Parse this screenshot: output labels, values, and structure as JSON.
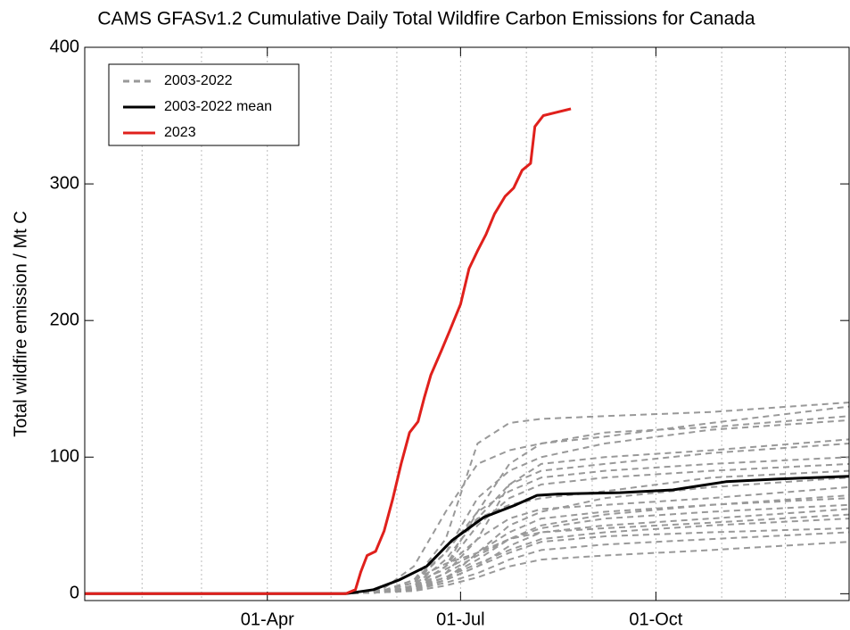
{
  "chart_data": {
    "type": "line",
    "title": "CAMS GFASv1.2 Cumulative Daily Total Wildfire Carbon Emissions for Canada",
    "ylabel": "Total wildfire emission / Mt C",
    "xlim": [
      5,
      365
    ],
    "ylim": [
      -5,
      400
    ],
    "xticks": [
      {
        "value": 91,
        "label": "01-Apr"
      },
      {
        "value": 182,
        "label": "01-Jul"
      },
      {
        "value": 274,
        "label": "01-Oct"
      }
    ],
    "xgrid": [
      32,
      60,
      91,
      121,
      152,
      182,
      213,
      244,
      274,
      305,
      335
    ],
    "yticks": [
      0,
      100,
      200,
      300,
      400
    ],
    "legend": "upper left",
    "series": [
      {
        "name": "2003-2022",
        "color": "#999999",
        "style": "dashed",
        "x": [
          5,
          125,
          145,
          160,
          175,
          190,
          205,
          220,
          250,
          300,
          365
        ],
        "values": [
          [
            0,
            0,
            2,
            10,
            40,
            110,
            125,
            128,
            130,
            133,
            140
          ],
          [
            0,
            0,
            1,
            5,
            20,
            60,
            95,
            110,
            115,
            125,
            137
          ],
          [
            0,
            0,
            3,
            20,
            60,
            95,
            105,
            110,
            118,
            122,
            130
          ],
          [
            0,
            0,
            2,
            8,
            30,
            70,
            90,
            100,
            110,
            120,
            127
          ],
          [
            0,
            0,
            1,
            6,
            25,
            55,
            80,
            95,
            100,
            105,
            113
          ],
          [
            0,
            0,
            1,
            4,
            15,
            40,
            80,
            90,
            95,
            103,
            110
          ],
          [
            0,
            0,
            2,
            10,
            30,
            60,
            75,
            85,
            90,
            95,
            100
          ],
          [
            0,
            0,
            1,
            5,
            20,
            50,
            70,
            80,
            85,
            90,
            95
          ],
          [
            0,
            0,
            2,
            8,
            35,
            55,
            65,
            70,
            75,
            85,
            90
          ],
          [
            0,
            0,
            1,
            3,
            10,
            30,
            50,
            60,
            70,
            78,
            85
          ],
          [
            0,
            0,
            1,
            5,
            20,
            40,
            55,
            62,
            65,
            70,
            78
          ],
          [
            0,
            0,
            2,
            10,
            22,
            30,
            45,
            55,
            60,
            65,
            72
          ],
          [
            0,
            0,
            1,
            4,
            12,
            25,
            40,
            50,
            58,
            65,
            70
          ],
          [
            0,
            0,
            1,
            6,
            15,
            28,
            40,
            48,
            55,
            60,
            65
          ],
          [
            0,
            0,
            1,
            3,
            10,
            20,
            35,
            45,
            50,
            55,
            62
          ],
          [
            0,
            0,
            2,
            8,
            18,
            30,
            40,
            45,
            48,
            52,
            58
          ],
          [
            0,
            0,
            1,
            5,
            12,
            22,
            32,
            40,
            45,
            50,
            55
          ],
          [
            0,
            0,
            1,
            4,
            10,
            20,
            30,
            38,
            42,
            45,
            48
          ],
          [
            0,
            0,
            1,
            3,
            8,
            15,
            25,
            32,
            36,
            40,
            45
          ],
          [
            0,
            0,
            1,
            2,
            6,
            12,
            20,
            25,
            28,
            32,
            38
          ]
        ]
      },
      {
        "name": "2003-2022 mean",
        "color": "#000000",
        "style": "solid",
        "x": [
          5,
          128,
          141,
          153,
          166,
          178,
          193,
          208,
          218,
          228,
          257,
          282,
          307,
          332,
          365
        ],
        "values": [
          0,
          0,
          3,
          10,
          20,
          39,
          56,
          65,
          72,
          73,
          74,
          76,
          82,
          84,
          86
        ]
      },
      {
        "name": "2023",
        "color": "#e0201c",
        "style": "solid",
        "x": [
          5,
          128,
          132.5,
          135,
          138,
          142,
          146,
          150,
          154,
          158,
          162,
          165,
          168,
          173,
          177,
          182,
          186,
          190,
          194,
          198,
          203,
          207,
          211,
          215,
          217,
          221,
          234
        ],
        "values": [
          0,
          0,
          3,
          16,
          28,
          31,
          46,
          69,
          95,
          118,
          126,
          144,
          160,
          178,
          193,
          212,
          238,
          251,
          263,
          278,
          291,
          297,
          310,
          315,
          342,
          350,
          355
        ]
      }
    ]
  }
}
